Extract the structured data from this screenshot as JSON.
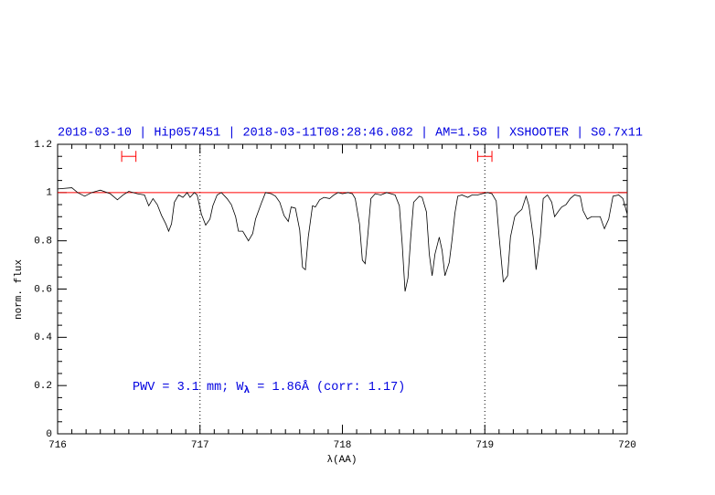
{
  "chart_data": {
    "type": "line",
    "title": "2018-03-10 | Hip057451 | 2018-03-11T08:28:46.082 | AM=1.58 | XSHOOTER | S0.7x11",
    "annotation": [
      "PWV = 3.1 mm; W",
      "λ",
      " = 1.86Å (corr: 1.17)"
    ],
    "xlabel": "λ(AA)",
    "ylabel": "norm. flux",
    "xlim": [
      716,
      720
    ],
    "ylim": [
      0,
      1.2
    ],
    "xticks": [
      716,
      717,
      718,
      719,
      720
    ],
    "yticks": [
      0,
      0.2,
      0.4,
      0.6,
      0.8,
      1,
      1.2
    ],
    "hline": 1,
    "hline_color": "#ff0000",
    "vlines": [
      717,
      719
    ],
    "ranges": [
      [
        716.45,
        716.55
      ],
      [
        718.95,
        719.05
      ]
    ],
    "range_y": 1.15,
    "range_color": "#ff0000",
    "series": [
      {
        "color": "#000000",
        "x": [
          716.0,
          716.1,
          716.14,
          716.19,
          716.24,
          716.3,
          716.37,
          716.42,
          716.46,
          716.5,
          716.56,
          716.61,
          716.64,
          716.67,
          716.7,
          716.73,
          716.76,
          716.78,
          716.8,
          716.82,
          716.85,
          716.88,
          716.91,
          716.93,
          716.96,
          716.98,
          717.01,
          717.04,
          717.07,
          717.09,
          717.12,
          717.15,
          717.19,
          717.22,
          717.25,
          717.27,
          717.3,
          717.32,
          717.34,
          717.37,
          717.39,
          717.43,
          717.46,
          717.5,
          717.53,
          717.56,
          717.59,
          717.62,
          717.64,
          717.67,
          717.7,
          717.72,
          717.74,
          717.76,
          717.79,
          717.81,
          717.84,
          717.87,
          717.91,
          717.94,
          717.97,
          718.0,
          718.04,
          718.07,
          718.09,
          718.12,
          718.14,
          718.16,
          718.18,
          718.2,
          718.23,
          718.27,
          718.31,
          718.34,
          718.37,
          718.4,
          718.42,
          718.44,
          718.46,
          718.48,
          718.5,
          718.54,
          718.56,
          718.59,
          718.61,
          718.63,
          718.65,
          718.68,
          718.7,
          718.72,
          718.75,
          718.77,
          718.79,
          718.81,
          718.84,
          718.88,
          718.91,
          718.95,
          718.98,
          719.02,
          719.05,
          719.08,
          719.1,
          719.13,
          719.16,
          719.18,
          719.21,
          719.23,
          719.26,
          719.29,
          719.31,
          719.34,
          719.36,
          719.39,
          719.41,
          719.44,
          719.47,
          719.49,
          719.52,
          719.54,
          719.57,
          719.6,
          719.63,
          719.67,
          719.69,
          719.72,
          719.75,
          719.79,
          719.81,
          719.84,
          719.87,
          719.9,
          719.94,
          719.97,
          720.0
        ],
        "values": [
          1.015,
          1.02,
          1.0,
          0.985,
          1.0,
          1.01,
          0.995,
          0.97,
          0.99,
          1.005,
          0.995,
          0.99,
          0.945,
          0.975,
          0.95,
          0.905,
          0.87,
          0.84,
          0.87,
          0.96,
          0.99,
          0.98,
          1.0,
          0.98,
          1.0,
          0.99,
          0.91,
          0.865,
          0.89,
          0.945,
          0.99,
          1.0,
          0.975,
          0.95,
          0.9,
          0.84,
          0.84,
          0.82,
          0.8,
          0.83,
          0.89,
          0.955,
          1.0,
          0.995,
          0.985,
          0.96,
          0.905,
          0.88,
          0.94,
          0.935,
          0.845,
          0.69,
          0.68,
          0.815,
          0.945,
          0.94,
          0.97,
          0.98,
          0.975,
          0.99,
          1.0,
          0.995,
          1.0,
          0.995,
          0.975,
          0.87,
          0.72,
          0.705,
          0.835,
          0.975,
          0.995,
          0.99,
          1.0,
          0.995,
          0.99,
          0.945,
          0.785,
          0.59,
          0.645,
          0.815,
          0.96,
          0.985,
          0.98,
          0.92,
          0.745,
          0.655,
          0.745,
          0.815,
          0.76,
          0.655,
          0.71,
          0.805,
          0.915,
          0.985,
          0.99,
          0.98,
          0.99,
          0.99,
          0.995,
          1.0,
          0.995,
          0.965,
          0.82,
          0.63,
          0.655,
          0.815,
          0.9,
          0.915,
          0.93,
          0.985,
          0.945,
          0.815,
          0.68,
          0.815,
          0.975,
          0.99,
          0.96,
          0.9,
          0.925,
          0.94,
          0.95,
          0.975,
          0.99,
          0.985,
          0.925,
          0.89,
          0.9,
          0.9,
          0.9,
          0.85,
          0.89,
          0.985,
          0.99,
          0.975,
          0.91
        ]
      }
    ]
  }
}
